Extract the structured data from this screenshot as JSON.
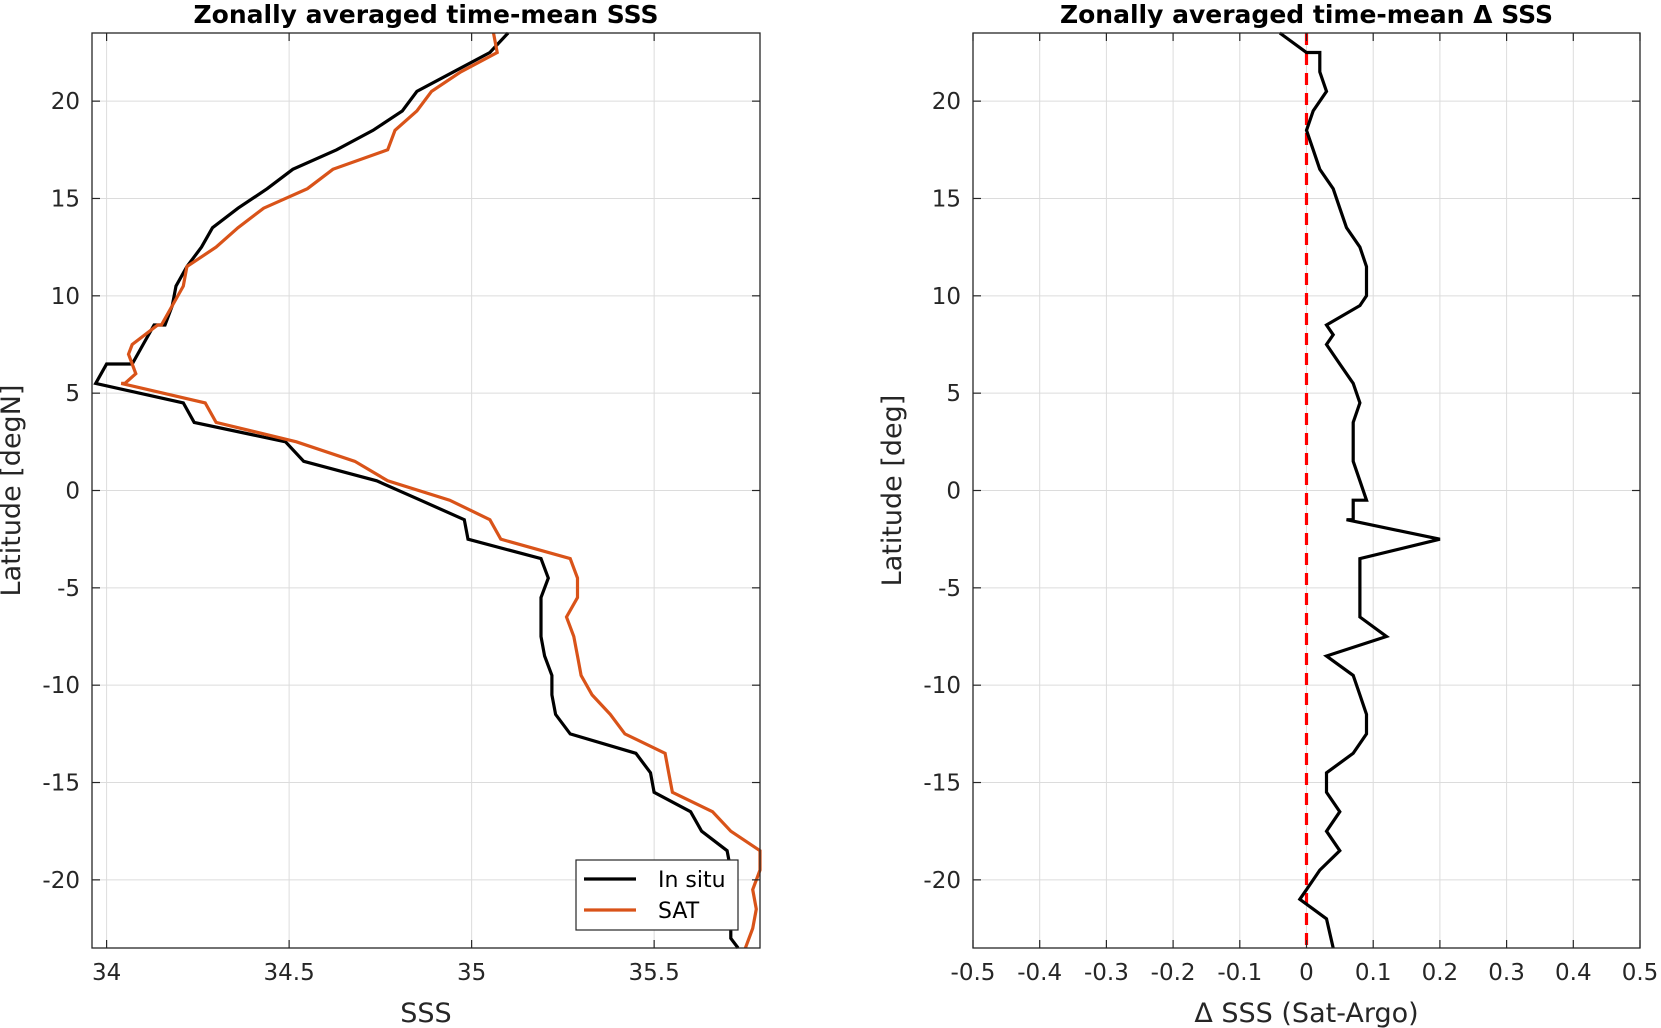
{
  "chart_data": [
    {
      "type": "line",
      "title": "Zonally averaged time-mean SSS",
      "xlabel": "SSS",
      "ylabel": "Latitude [degN]",
      "xlim": [
        33.96,
        35.79
      ],
      "ylim": [
        -23.5,
        23.5
      ],
      "xticks": [
        34,
        34.5,
        35,
        35.5
      ],
      "xtick_labels": [
        "34",
        "34.5",
        "35",
        "35.5"
      ],
      "yticks": [
        20,
        15,
        10,
        5,
        0,
        -5,
        -10,
        -15,
        -20
      ],
      "ytick_labels": [
        "20",
        "15",
        "10",
        "5",
        "0",
        "-5",
        "-10",
        "-15",
        "-20"
      ],
      "grid": true,
      "legend": {
        "position": "bottom-right",
        "entries": [
          "In situ",
          "SAT"
        ]
      },
      "series": [
        {
          "name": "In situ",
          "color": "#000000",
          "x": [
            35.1,
            35.05,
            34.95,
            34.85,
            34.81,
            34.73,
            34.63,
            34.51,
            34.44,
            34.36,
            34.29,
            34.26,
            34.22,
            34.19,
            34.18,
            34.18,
            34.16,
            34.13,
            34.1,
            34.07,
            34.06,
            34.03,
            34.0,
            33.97,
            34.21,
            34.24,
            34.49,
            34.54,
            34.74,
            34.86,
            34.98,
            34.99,
            35.19,
            35.21,
            35.19,
            35.19,
            35.19,
            35.2,
            35.22,
            35.22,
            35.23,
            35.27,
            35.45,
            35.49,
            35.5,
            35.6,
            35.63,
            35.7,
            35.71,
            35.71,
            35.71,
            35.71,
            35.71,
            35.73
          ],
          "y": [
            23.5,
            22.5,
            21.5,
            20.5,
            19.5,
            18.5,
            17.5,
            16.5,
            15.5,
            14.5,
            13.5,
            12.5,
            11.5,
            10.5,
            9.5,
            9.5,
            8.5,
            8.5,
            7.5,
            6.5,
            6.5,
            6.5,
            6.5,
            5.5,
            4.5,
            3.5,
            2.5,
            1.5,
            0.5,
            -0.5,
            -1.5,
            -2.5,
            -3.5,
            -4.5,
            -5.5,
            -6.5,
            -7.5,
            -8.5,
            -9.5,
            -10.5,
            -11.5,
            -12.5,
            -13.5,
            -14.5,
            -15.5,
            -16.5,
            -17.5,
            -18.5,
            -19.5,
            -20.5,
            -21.5,
            -22.5,
            -23.0,
            -23.5
          ]
        },
        {
          "name": "SAT",
          "color": "#D95319",
          "x": [
            35.06,
            35.07,
            34.97,
            34.89,
            34.85,
            34.79,
            34.77,
            34.62,
            34.55,
            34.43,
            34.36,
            34.3,
            34.22,
            34.21,
            34.18,
            34.15,
            34.14,
            34.07,
            34.06,
            34.07,
            34.08,
            34.05,
            34.04,
            34.04,
            34.27,
            34.3,
            34.52,
            34.68,
            34.77,
            34.94,
            35.05,
            35.08,
            35.27,
            35.29,
            35.29,
            35.26,
            35.28,
            35.29,
            35.3,
            35.33,
            35.38,
            35.42,
            35.53,
            35.54,
            35.55,
            35.66,
            35.71,
            35.79,
            35.79,
            35.77,
            35.78,
            35.77,
            35.76,
            35.75
          ],
          "y": [
            23.5,
            22.5,
            21.5,
            20.5,
            19.5,
            18.5,
            17.5,
            16.5,
            15.5,
            14.5,
            13.5,
            12.5,
            11.5,
            10.5,
            9.5,
            8.5,
            8.5,
            7.5,
            7.0,
            6.5,
            6.0,
            5.5,
            5.5,
            5.5,
            4.5,
            3.5,
            2.5,
            1.5,
            0.5,
            -0.5,
            -1.5,
            -2.5,
            -3.5,
            -4.5,
            -5.5,
            -6.5,
            -7.5,
            -8.5,
            -9.5,
            -10.5,
            -11.5,
            -12.5,
            -13.5,
            -14.5,
            -15.5,
            -16.5,
            -17.5,
            -18.5,
            -19.5,
            -20.5,
            -21.5,
            -22.5,
            -23.0,
            -23.5
          ]
        }
      ]
    },
    {
      "type": "line",
      "title": "Zonally averaged time-mean Δ SSS",
      "xlabel": "Δ SSS (Sat-Argo)",
      "ylabel": "Latitude [deg]",
      "xlim": [
        -0.5,
        0.5
      ],
      "ylim": [
        -23.5,
        23.5
      ],
      "xticks": [
        -0.5,
        -0.4,
        -0.3,
        -0.2,
        -0.1,
        0,
        0.1,
        0.2,
        0.3,
        0.4,
        0.5
      ],
      "xtick_labels": [
        "-0.5",
        "-0.4",
        "-0.3",
        "-0.2",
        "-0.1",
        "0",
        "0.1",
        "0.2",
        "0.3",
        "0.4",
        "0.5"
      ],
      "yticks": [
        20,
        15,
        10,
        5,
        0,
        -5,
        -10,
        -15,
        -20
      ],
      "ytick_labels": [
        "20",
        "15",
        "10",
        "5",
        "0",
        "-5",
        "-10",
        "-15",
        "-20"
      ],
      "grid": true,
      "reference_line": {
        "x": 0,
        "color": "#FF0000",
        "style": "dashed"
      },
      "series": [
        {
          "color": "#000000",
          "x": [
            -0.04,
            0.0,
            0.02,
            0.02,
            0.03,
            0.01,
            0.0,
            0.01,
            0.02,
            0.04,
            0.05,
            0.06,
            0.06,
            0.08,
            0.09,
            0.09,
            0.09,
            0.08,
            0.03,
            0.04,
            0.03,
            0.05,
            0.07,
            0.08,
            0.07,
            0.07,
            0.07,
            0.08,
            0.09,
            0.07,
            0.07,
            0.06,
            0.2,
            0.08,
            0.08,
            0.08,
            0.08,
            0.12,
            0.03,
            0.07,
            0.08,
            0.09,
            0.09,
            0.07,
            0.03,
            0.03,
            0.05,
            0.03,
            0.05,
            0.02,
            0.0,
            -0.01,
            0.01,
            0.03,
            0.04
          ],
          "y": [
            23.5,
            22.5,
            22.5,
            21.5,
            20.5,
            19.5,
            18.5,
            17.5,
            16.5,
            15.5,
            14.5,
            13.5,
            13.5,
            12.5,
            11.5,
            10.5,
            10.0,
            9.5,
            8.5,
            8.0,
            7.5,
            6.5,
            5.5,
            4.5,
            3.5,
            2.5,
            1.5,
            0.5,
            -0.5,
            -0.5,
            -1.5,
            -1.5,
            -2.5,
            -3.5,
            -4.5,
            -5.5,
            -6.5,
            -7.5,
            -8.5,
            -9.5,
            -10.5,
            -11.5,
            -12.5,
            -13.5,
            -14.5,
            -15.5,
            -16.5,
            -17.5,
            -18.5,
            -19.5,
            -20.5,
            -21.0,
            -21.5,
            -22.0,
            -23.5
          ]
        }
      ]
    }
  ]
}
